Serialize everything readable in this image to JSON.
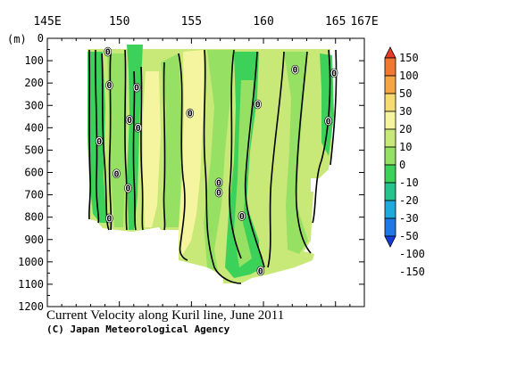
{
  "chart_data": {
    "type": "heatmap",
    "title": "Current Velocity along Kuril line, June 2011",
    "copyright": "(C) Japan Meteorological Agency",
    "ylabel": "(m)",
    "x_ticks_major": [
      {
        "value": 145,
        "label": "145E"
      },
      {
        "value": 150,
        "label": "150"
      },
      {
        "value": 155,
        "label": "155"
      },
      {
        "value": 160,
        "label": "160"
      },
      {
        "value": 165,
        "label": "165"
      },
      {
        "value": 167,
        "label": "167E"
      }
    ],
    "xlim": [
      145,
      167
    ],
    "ylim": [
      1200,
      0
    ],
    "y_ticks": [
      0,
      100,
      200,
      300,
      400,
      500,
      600,
      700,
      800,
      900,
      1000,
      1100,
      1200
    ],
    "colorbar": {
      "labels": [
        "150",
        "100",
        "50",
        "30",
        "20",
        "10",
        "0",
        "-10",
        "-20",
        "-30",
        "-50",
        "-100",
        "-150"
      ],
      "colors": [
        "#e63c28",
        "#f07830",
        "#f5a544",
        "#f5dc70",
        "#f5f5a0",
        "#c8e878",
        "#96e063",
        "#3cd25a",
        "#28c38c",
        "#1eaadc",
        "#1e78e6",
        "#143cdc"
      ]
    },
    "contour_labels": [
      {
        "lon": 149.2,
        "depth": 60,
        "text": "0"
      },
      {
        "lon": 149.3,
        "depth": 210,
        "text": "0"
      },
      {
        "lon": 151.2,
        "depth": 220,
        "text": "0"
      },
      {
        "lon": 154.9,
        "depth": 335,
        "text": "0"
      },
      {
        "lon": 159.6,
        "depth": 295,
        "text": "0"
      },
      {
        "lon": 162.2,
        "depth": 140,
        "text": "0"
      },
      {
        "lon": 164.9,
        "depth": 155,
        "text": "0"
      },
      {
        "lon": 150.7,
        "depth": 365,
        "text": "0"
      },
      {
        "lon": 151.3,
        "depth": 400,
        "text": "0"
      },
      {
        "lon": 148.6,
        "depth": 460,
        "text": "0"
      },
      {
        "lon": 164.5,
        "depth": 370,
        "text": "0"
      },
      {
        "lon": 149.8,
        "depth": 605,
        "text": "0"
      },
      {
        "lon": 150.6,
        "depth": 670,
        "text": "0"
      },
      {
        "lon": 156.9,
        "depth": 645,
        "text": "0"
      },
      {
        "lon": 156.9,
        "depth": 690,
        "text": "0"
      },
      {
        "lon": 158.5,
        "depth": 795,
        "text": "0"
      },
      {
        "lon": 149.3,
        "depth": 805,
        "text": "0"
      },
      {
        "lon": 159.8,
        "depth": 1040,
        "text": "0"
      }
    ]
  }
}
